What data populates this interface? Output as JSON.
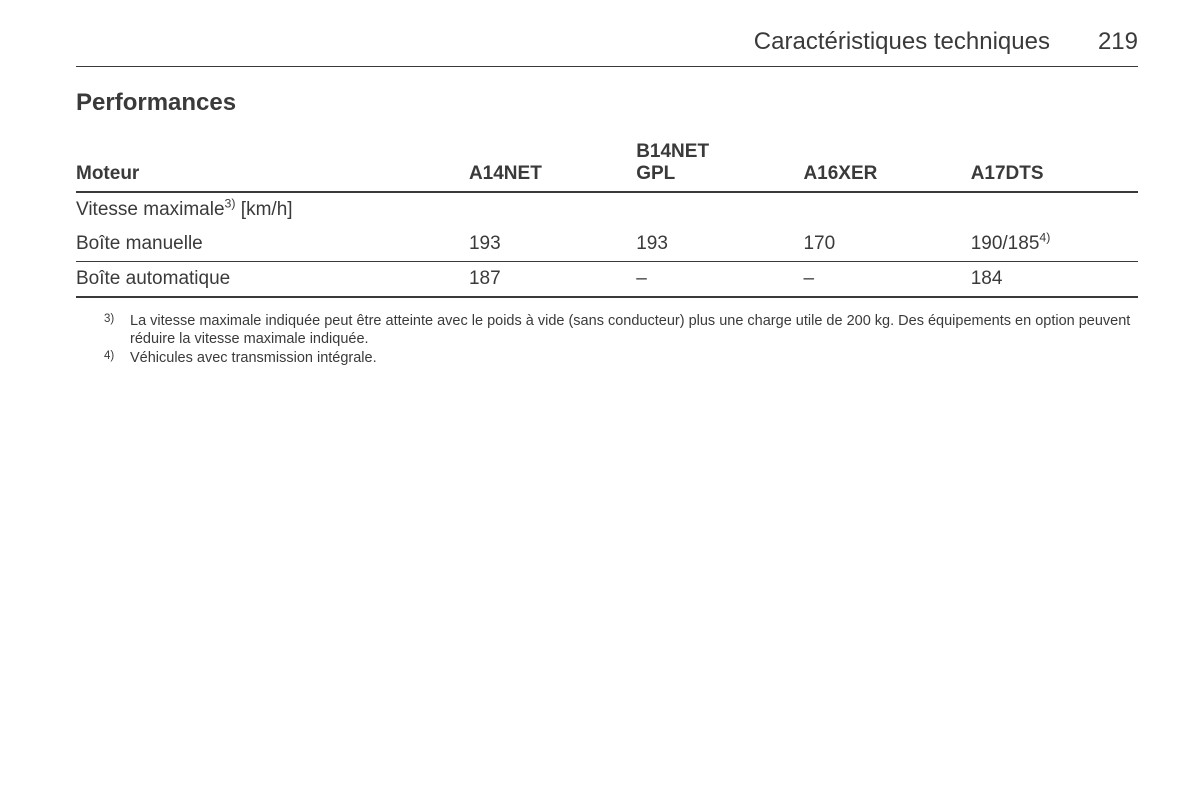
{
  "header": {
    "chapter_title": "Caractéristiques techniques",
    "page_number": "219"
  },
  "section": {
    "title": "Performances"
  },
  "table": {
    "columns": {
      "label": "Moteur",
      "c1": "A14NET",
      "c2_line1": "B14NET",
      "c2_line2": "GPL",
      "c3": "A16XER",
      "c4": "A17DTS"
    },
    "subheader": {
      "label_prefix": "Vitesse maximale",
      "label_sup": "3)",
      "label_suffix": " [km/h]"
    },
    "row_manual": {
      "label": "Boîte manuelle",
      "c1": "193",
      "c2": "193",
      "c3": "170",
      "c4_main": "190/185",
      "c4_sup": "4)"
    },
    "row_auto": {
      "label": "Boîte automatique",
      "c1": "187",
      "c2": "–",
      "c3": "–",
      "c4": "184"
    },
    "widths": {
      "label_pct": 37,
      "val_pct": 15.75
    },
    "colors": {
      "text": "#3a3a3a",
      "rule": "#3a3a3a",
      "background": "#ffffff"
    },
    "font_sizes_pt": {
      "chapter": 18,
      "section": 18,
      "table_body": 14,
      "footnote": 11
    }
  },
  "footnotes": [
    {
      "mark": "3)",
      "text": "La vitesse maximale indiquée peut être atteinte avec le poids à vide (sans conducteur) plus une charge utile de 200 kg. Des équipements en option peuvent réduire la vitesse maximale indiquée."
    },
    {
      "mark": "4)",
      "text": "Véhicules avec transmission intégrale."
    }
  ]
}
